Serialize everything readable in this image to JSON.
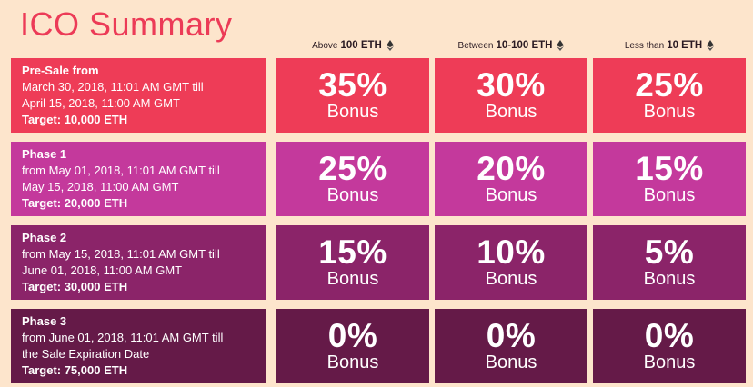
{
  "title": "ICO Summary",
  "columns": [
    {
      "prefix": "Above",
      "amount": "100 ETH",
      "icon": "ethereum-icon"
    },
    {
      "prefix": "Between",
      "amount": "10-100 ETH",
      "icon": "ethereum-icon"
    },
    {
      "prefix": "Less than",
      "amount": "10 ETH",
      "icon": "ethereum-icon"
    }
  ],
  "bonus_label": "Bonus",
  "rows": [
    {
      "name": "Pre-Sale from",
      "date1": "March 30, 2018, 11:01 AM GMT till",
      "date2": "April 15, 2018, 11:00 AM GMT",
      "target": "Target: 10,000 ETH",
      "color": "#ee3c57",
      "bonuses": [
        "35%",
        "30%",
        "25%"
      ]
    },
    {
      "name": "Phase 1",
      "date1": "from May 01, 2018, 11:01 AM GMT till",
      "date2": "May 15, 2018, 11:00 AM GMT",
      "target": "Target: 20,000 ETH",
      "color": "#c4399c",
      "bonuses": [
        "25%",
        "20%",
        "15%"
      ]
    },
    {
      "name": "Phase 2",
      "date1": "from May 15, 2018, 11:01 AM GMT till",
      "date2": "June 01, 2018, 11:00 AM GMT",
      "target": "Target: 30,000 ETH",
      "color": "#8b2469",
      "bonuses": [
        "15%",
        "10%",
        "5%"
      ]
    },
    {
      "name": "Phase 3",
      "date1": "from June 01, 2018, 11:01 AM GMT till",
      "date2": "the Sale Expiration Date",
      "target": "Target: 75,000 ETH",
      "color": "#651a48",
      "bonuses": [
        "0%",
        "0%",
        "0%"
      ]
    }
  ]
}
